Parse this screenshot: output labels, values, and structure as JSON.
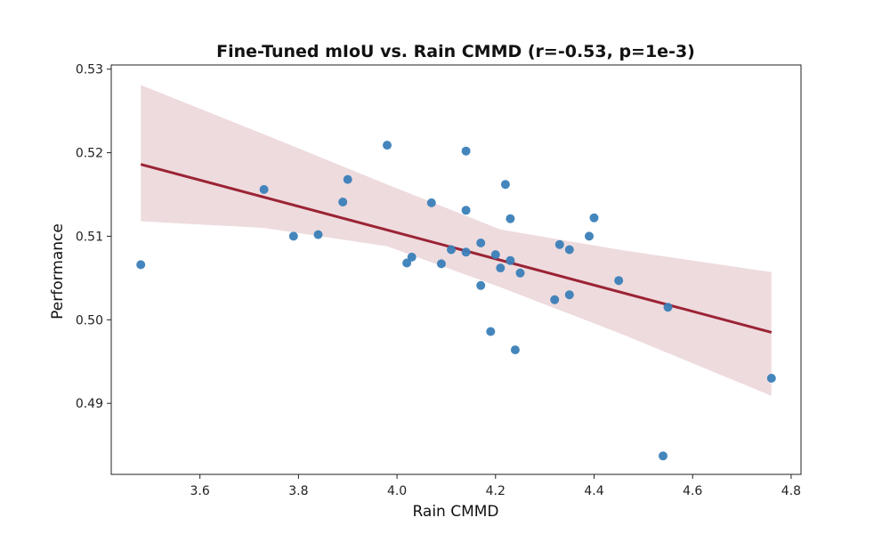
{
  "chart_data": {
    "type": "scatter",
    "title": "Fine-Tuned mIoU vs. Rain CMMD (r=-0.53, p=1e-3)",
    "xlabel": "Rain CMMD",
    "ylabel": "Performance",
    "xlim": [
      3.42,
      4.82
    ],
    "ylim": [
      0.4815,
      0.5305
    ],
    "xticks": [
      3.6,
      3.8,
      4.0,
      4.2,
      4.4,
      4.6,
      4.8
    ],
    "xtick_labels": [
      "3.6",
      "3.8",
      "4.0",
      "4.2",
      "4.4",
      "4.6",
      "4.8"
    ],
    "yticks": [
      0.49,
      0.5,
      0.51,
      0.52,
      0.53
    ],
    "ytick_labels": [
      "0.49",
      "0.50",
      "0.51",
      "0.52",
      "0.53"
    ],
    "point_color": "#3a7fb8",
    "line_color": "#9b2335",
    "band_color": "#e8cfd3",
    "points": [
      {
        "x": 3.48,
        "y": 0.5066
      },
      {
        "x": 3.73,
        "y": 0.5156
      },
      {
        "x": 3.79,
        "y": 0.51
      },
      {
        "x": 3.84,
        "y": 0.5102
      },
      {
        "x": 3.89,
        "y": 0.5141
      },
      {
        "x": 3.9,
        "y": 0.5168
      },
      {
        "x": 3.98,
        "y": 0.5209
      },
      {
        "x": 4.02,
        "y": 0.5068
      },
      {
        "x": 4.03,
        "y": 0.5075
      },
      {
        "x": 4.07,
        "y": 0.514
      },
      {
        "x": 4.09,
        "y": 0.5067
      },
      {
        "x": 4.11,
        "y": 0.5084
      },
      {
        "x": 4.14,
        "y": 0.5202
      },
      {
        "x": 4.14,
        "y": 0.5131
      },
      {
        "x": 4.14,
        "y": 0.5081
      },
      {
        "x": 4.17,
        "y": 0.5092
      },
      {
        "x": 4.17,
        "y": 0.5041
      },
      {
        "x": 4.19,
        "y": 0.4986
      },
      {
        "x": 4.2,
        "y": 0.5078
      },
      {
        "x": 4.21,
        "y": 0.5062
      },
      {
        "x": 4.22,
        "y": 0.5162
      },
      {
        "x": 4.23,
        "y": 0.5121
      },
      {
        "x": 4.23,
        "y": 0.5071
      },
      {
        "x": 4.24,
        "y": 0.4964
      },
      {
        "x": 4.25,
        "y": 0.5056
      },
      {
        "x": 4.32,
        "y": 0.5024
      },
      {
        "x": 4.33,
        "y": 0.509
      },
      {
        "x": 4.35,
        "y": 0.5084
      },
      {
        "x": 4.35,
        "y": 0.503
      },
      {
        "x": 4.39,
        "y": 0.51
      },
      {
        "x": 4.4,
        "y": 0.5122
      },
      {
        "x": 4.45,
        "y": 0.5047
      },
      {
        "x": 4.54,
        "y": 0.4837
      },
      {
        "x": 4.55,
        "y": 0.5015
      },
      {
        "x": 4.76,
        "y": 0.493
      }
    ],
    "regression_line": {
      "x": [
        3.48,
        4.76
      ],
      "y": [
        0.5186,
        0.4985
      ]
    },
    "confidence_band": {
      "x": [
        3.48,
        3.73,
        3.98,
        4.21,
        4.46,
        4.76
      ],
      "upper": [
        0.5281,
        0.5222,
        0.5162,
        0.5108,
        0.5083,
        0.5057
      ],
      "lower": [
        0.5118,
        0.511,
        0.5088,
        0.5039,
        0.4982,
        0.4909
      ]
    }
  }
}
